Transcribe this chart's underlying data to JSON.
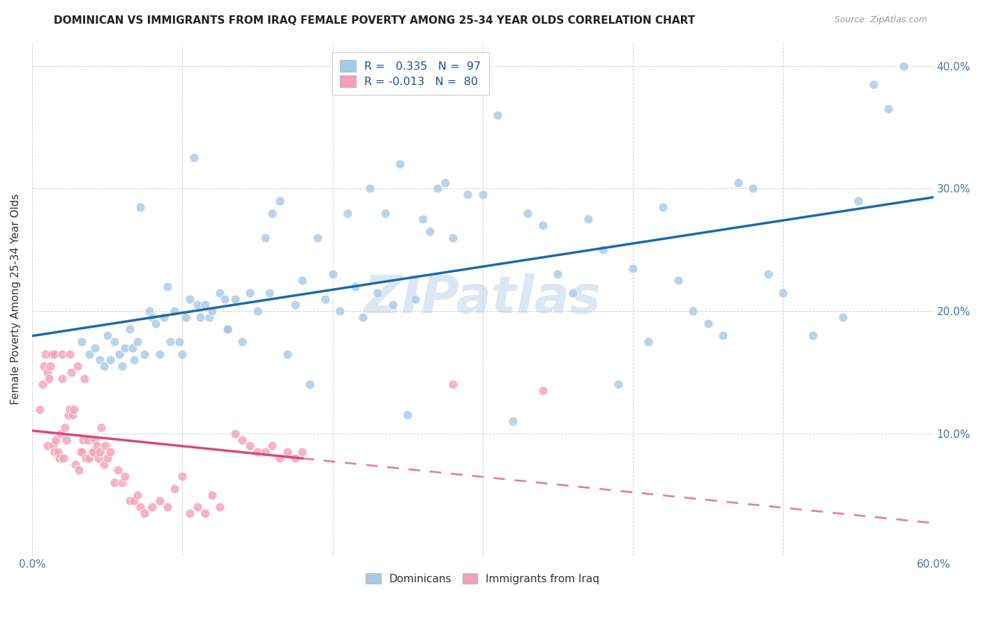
{
  "title": "DOMINICAN VS IMMIGRANTS FROM IRAQ FEMALE POVERTY AMONG 25-34 YEAR OLDS CORRELATION CHART",
  "source": "Source: ZipAtlas.com",
  "ylabel": "Female Poverty Among 25-34 Year Olds",
  "xlim": [
    0.0,
    0.6
  ],
  "ylim": [
    0.0,
    0.42
  ],
  "xticks": [
    0.0,
    0.1,
    0.2,
    0.3,
    0.4,
    0.5,
    0.6
  ],
  "xticklabels": [
    "0.0%",
    "",
    "",
    "",
    "",
    "",
    "60.0%"
  ],
  "yticks": [
    0.0,
    0.1,
    0.2,
    0.3,
    0.4
  ],
  "yticklabels_right": [
    "",
    "10.0%",
    "20.0%",
    "30.0%",
    "40.0%"
  ],
  "dominicans_R": 0.335,
  "dominicans_N": 97,
  "iraq_R": -0.013,
  "iraq_N": 80,
  "blue_color": "#a8c8e8",
  "pink_color": "#f4a0b8",
  "blue_line_color": "#1a6aaa",
  "pink_line_color": "#d84880",
  "watermark": "ZIPatlas",
  "legend_label1": "Dominicans",
  "legend_label2": "Immigrants from Iraq",
  "dom_x": [
    0.033,
    0.038,
    0.042,
    0.045,
    0.048,
    0.05,
    0.052,
    0.055,
    0.058,
    0.06,
    0.062,
    0.065,
    0.067,
    0.068,
    0.07,
    0.072,
    0.075,
    0.078,
    0.08,
    0.082,
    0.085,
    0.088,
    0.09,
    0.092,
    0.095,
    0.098,
    0.1,
    0.102,
    0.105,
    0.108,
    0.11,
    0.112,
    0.115,
    0.118,
    0.12,
    0.125,
    0.128,
    0.13,
    0.135,
    0.14,
    0.145,
    0.15,
    0.155,
    0.158,
    0.16,
    0.165,
    0.17,
    0.175,
    0.18,
    0.185,
    0.19,
    0.195,
    0.2,
    0.205,
    0.21,
    0.215,
    0.22,
    0.225,
    0.23,
    0.235,
    0.24,
    0.245,
    0.25,
    0.255,
    0.26,
    0.265,
    0.27,
    0.275,
    0.28,
    0.29,
    0.3,
    0.31,
    0.32,
    0.33,
    0.34,
    0.35,
    0.36,
    0.37,
    0.38,
    0.39,
    0.4,
    0.41,
    0.42,
    0.43,
    0.44,
    0.45,
    0.46,
    0.47,
    0.48,
    0.49,
    0.5,
    0.52,
    0.54,
    0.55,
    0.56,
    0.57,
    0.58
  ],
  "dom_y": [
    0.175,
    0.165,
    0.17,
    0.16,
    0.155,
    0.18,
    0.16,
    0.175,
    0.165,
    0.155,
    0.17,
    0.185,
    0.17,
    0.16,
    0.175,
    0.285,
    0.165,
    0.2,
    0.195,
    0.19,
    0.165,
    0.195,
    0.22,
    0.175,
    0.2,
    0.175,
    0.165,
    0.195,
    0.21,
    0.325,
    0.205,
    0.195,
    0.205,
    0.195,
    0.2,
    0.215,
    0.21,
    0.185,
    0.21,
    0.175,
    0.215,
    0.2,
    0.26,
    0.215,
    0.28,
    0.29,
    0.165,
    0.205,
    0.225,
    0.14,
    0.26,
    0.21,
    0.23,
    0.2,
    0.28,
    0.22,
    0.195,
    0.3,
    0.215,
    0.28,
    0.205,
    0.32,
    0.115,
    0.21,
    0.275,
    0.265,
    0.3,
    0.305,
    0.26,
    0.295,
    0.295,
    0.36,
    0.11,
    0.28,
    0.27,
    0.23,
    0.215,
    0.275,
    0.25,
    0.14,
    0.235,
    0.175,
    0.285,
    0.225,
    0.2,
    0.19,
    0.18,
    0.305,
    0.3,
    0.23,
    0.215,
    0.18,
    0.195,
    0.29,
    0.385,
    0.365,
    0.4
  ],
  "iraq_x": [
    0.005,
    0.007,
    0.008,
    0.009,
    0.01,
    0.01,
    0.011,
    0.012,
    0.013,
    0.014,
    0.015,
    0.015,
    0.016,
    0.017,
    0.018,
    0.019,
    0.02,
    0.02,
    0.021,
    0.022,
    0.023,
    0.024,
    0.025,
    0.025,
    0.026,
    0.027,
    0.028,
    0.029,
    0.03,
    0.031,
    0.032,
    0.033,
    0.034,
    0.035,
    0.036,
    0.037,
    0.038,
    0.04,
    0.041,
    0.042,
    0.043,
    0.044,
    0.045,
    0.046,
    0.048,
    0.049,
    0.05,
    0.052,
    0.055,
    0.057,
    0.06,
    0.062,
    0.065,
    0.068,
    0.07,
    0.072,
    0.075,
    0.08,
    0.085,
    0.09,
    0.095,
    0.1,
    0.105,
    0.11,
    0.115,
    0.12,
    0.125,
    0.13,
    0.135,
    0.14,
    0.145,
    0.15,
    0.155,
    0.16,
    0.165,
    0.17,
    0.175,
    0.18,
    0.28,
    0.34
  ],
  "iraq_y": [
    0.12,
    0.14,
    0.155,
    0.165,
    0.15,
    0.09,
    0.145,
    0.155,
    0.165,
    0.09,
    0.085,
    0.165,
    0.095,
    0.085,
    0.08,
    0.1,
    0.145,
    0.165,
    0.08,
    0.105,
    0.095,
    0.115,
    0.165,
    0.12,
    0.15,
    0.115,
    0.12,
    0.075,
    0.155,
    0.07,
    0.085,
    0.085,
    0.095,
    0.145,
    0.08,
    0.095,
    0.08,
    0.085,
    0.085,
    0.095,
    0.09,
    0.08,
    0.085,
    0.105,
    0.075,
    0.09,
    0.08,
    0.085,
    0.06,
    0.07,
    0.06,
    0.065,
    0.045,
    0.045,
    0.05,
    0.04,
    0.035,
    0.04,
    0.045,
    0.04,
    0.055,
    0.065,
    0.035,
    0.04,
    0.035,
    0.05,
    0.04,
    0.185,
    0.1,
    0.095,
    0.09,
    0.085,
    0.085,
    0.09,
    0.08,
    0.085,
    0.08,
    0.085,
    0.14,
    0.135
  ]
}
